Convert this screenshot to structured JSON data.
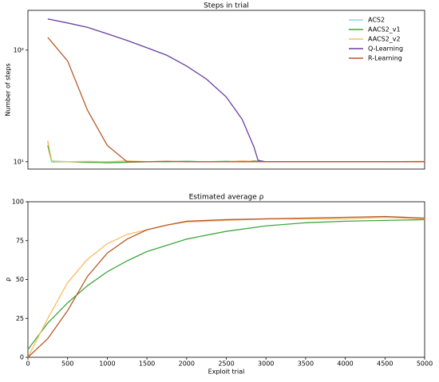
{
  "chart_data": [
    {
      "type": "line",
      "title": "Steps in trial",
      "ylabel": "Number of steps",
      "yscale": "log",
      "xlim": [
        0,
        5000
      ],
      "ylim": [
        8.6,
        227
      ],
      "yticks": [
        {
          "value": 10,
          "label": "10¹"
        },
        {
          "value": 100,
          "label": "10²"
        }
      ],
      "legend": "upper right",
      "x": [
        250,
        300,
        500,
        750,
        1000,
        1250,
        1500,
        1750,
        2000,
        2250,
        2500,
        2700,
        2850,
        2900,
        3000,
        3500,
        4000,
        4500,
        5000
      ],
      "series": [
        {
          "name": "ACS2",
          "color": "#8ed6e6",
          "values": [
            15,
            10.2,
            10,
            10,
            10,
            9.9,
            10,
            10,
            10.1,
            10,
            10,
            10,
            10,
            10,
            10,
            10,
            10,
            10,
            10
          ]
        },
        {
          "name": "AACS2_v1",
          "color": "#3ea83e",
          "values": [
            14,
            10,
            10,
            9.9,
            9.8,
            9.9,
            10,
            10,
            10.1,
            10,
            10.1,
            10,
            10.2,
            10.1,
            10,
            10,
            10,
            10,
            10
          ]
        },
        {
          "name": "AACS2_v2",
          "color": "#f7bd62",
          "values": [
            15.5,
            10.1,
            10,
            10.1,
            10,
            10.2,
            10,
            10.1,
            10,
            10,
            10,
            10.2,
            10.1,
            10,
            10,
            10,
            10,
            10,
            10.1
          ]
        },
        {
          "name": "Q-Learning",
          "color": "#6a3fa0",
          "values": [
            190,
            187,
            175,
            160,
            140,
            122,
            105,
            90,
            72,
            55,
            38,
            24,
            13.5,
            10.3,
            10,
            10,
            10,
            10,
            10
          ]
        },
        {
          "name": "R-Learning",
          "color": "#b85a2a",
          "values": [
            130,
            118,
            80,
            29,
            14,
            10,
            10,
            10.1,
            10,
            10,
            10,
            10,
            10,
            10,
            10,
            10,
            10,
            10,
            10
          ]
        }
      ]
    },
    {
      "type": "line",
      "title": "Estimated average ρ",
      "xlabel": "Exploit trial",
      "ylabel": "ρ",
      "xlim": [
        0,
        5000
      ],
      "ylim": [
        0,
        100
      ],
      "xticks": [
        0,
        500,
        1000,
        1500,
        2000,
        2500,
        3000,
        3500,
        4000,
        4500,
        5000
      ],
      "yticks": [
        0,
        25,
        50,
        75,
        100
      ],
      "x": [
        0,
        250,
        500,
        750,
        1000,
        1250,
        1500,
        1750,
        2000,
        2500,
        3000,
        3500,
        4000,
        4500,
        5000
      ],
      "series": [
        {
          "color": "#3ea83e",
          "values": [
            5,
            22,
            35,
            46,
            55,
            62,
            68,
            72,
            76,
            81,
            84.5,
            86.5,
            87.5,
            88,
            88.5
          ]
        },
        {
          "color": "#f7bd62",
          "values": [
            0,
            25,
            48,
            63,
            73,
            79,
            82,
            85,
            87,
            88,
            89,
            89,
            89,
            90,
            89
          ]
        },
        {
          "color": "#b85a2a",
          "values": [
            0,
            12,
            30,
            52,
            67,
            76,
            82,
            85,
            87.5,
            88.5,
            89,
            89.5,
            90,
            90.5,
            89.5
          ]
        }
      ]
    }
  ]
}
